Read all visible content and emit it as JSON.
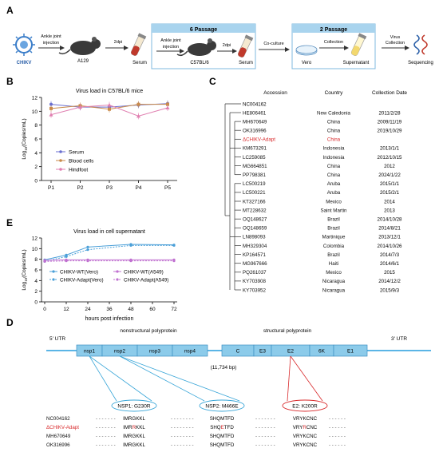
{
  "panels": {
    "A": "A",
    "B": "B",
    "C": "C",
    "D": "D",
    "E": "E"
  },
  "panel_a": {
    "virus": "CHIKV",
    "route": "Ankle joint injection",
    "host1": "A129",
    "dpi1": "2dpi",
    "serum1": "Serum",
    "passage6": "6 Passage",
    "route2": "Ankle joint injection",
    "host2": "C57BL/6",
    "dpi2": "2dpi",
    "serum2": "Serum",
    "coculture": "Co-culture",
    "passage2": "2 Passage",
    "cell": "Vero",
    "collection": "Collection",
    "supernatant": "Supernatant",
    "virus_collection": "Virus Collection",
    "sequencing": "Sequencing"
  },
  "chart_b": {
    "title": "Virus load in C57BL/6 mice",
    "ylabel": "Log10(Copies/mL)",
    "legend": [
      "Serum",
      "Blood cells",
      "Hindfoot"
    ]
  },
  "chart_e": {
    "title": "Virus load in cell supernatant",
    "ylabel": "Log10(Copies/mL)",
    "xlabel": "hours post infection",
    "legend": [
      "CHIKV-WT(Vero)",
      "CHIKV-Adapt(Vero)",
      "CHIKV-WT(A549)",
      "CHIKV-Adapt(A549)"
    ]
  },
  "chart_data": [
    {
      "type": "line",
      "title": "Virus load in C57BL/6 mice",
      "ylabel": "Log10(Copies/mL)",
      "xlabel": "",
      "categories": [
        "P1",
        "P2",
        "P3",
        "P4",
        "P5"
      ],
      "ylim": [
        0,
        12
      ],
      "yticks": [
        0,
        2,
        4,
        6,
        8,
        10,
        12
      ],
      "legend_position": "bottom-left",
      "series": [
        {
          "name": "Serum",
          "values": [
            11.0,
            10.6,
            10.6,
            10.9,
            11.1
          ],
          "color": "#6a6fd0"
        },
        {
          "name": "Blood cells",
          "values": [
            10.4,
            10.8,
            10.3,
            11.0,
            11.0
          ],
          "color": "#c98a4a"
        },
        {
          "name": "Hindfoot",
          "values": [
            9.5,
            10.6,
            10.9,
            9.3,
            10.5
          ],
          "color": "#e07fb0"
        }
      ]
    },
    {
      "type": "line",
      "title": "Virus load in cell supernatant",
      "ylabel": "Log10(Copies/mL)",
      "xlabel": "hours post infection",
      "x": [
        0,
        12,
        24,
        36,
        48,
        60,
        72
      ],
      "xticks": [
        0,
        12,
        24,
        36,
        48,
        60,
        72
      ],
      "ylim": [
        0,
        12
      ],
      "yticks": [
        0,
        2,
        4,
        6,
        8,
        10,
        12
      ],
      "legend_position": "bottom",
      "series": [
        {
          "name": "CHIKV-WT(Vero)",
          "x": [
            0,
            12,
            24,
            48,
            72
          ],
          "values": [
            7.9,
            8.8,
            10.3,
            10.8,
            10.7
          ],
          "color": "#4a9fd8",
          "dash": false
        },
        {
          "name": "CHIKV-Adapt(Vero)",
          "x": [
            0,
            12,
            24,
            48,
            72
          ],
          "values": [
            7.6,
            8.5,
            9.8,
            10.6,
            10.6
          ],
          "color": "#4a9fd8",
          "dash": true
        },
        {
          "name": "CHIKV-WT(A549)",
          "x": [
            0,
            12,
            24,
            48,
            72
          ],
          "values": [
            7.8,
            7.9,
            7.9,
            7.9,
            7.9
          ],
          "color": "#c070d0",
          "dash": false
        },
        {
          "name": "CHIKV-Adapt(A549)",
          "x": [
            0,
            12,
            24,
            48,
            72
          ],
          "values": [
            7.6,
            7.7,
            7.7,
            7.7,
            7.7
          ],
          "color": "#c070d0",
          "dash": true
        }
      ]
    }
  ],
  "panel_c": {
    "headers": [
      "Accession",
      "Country",
      "Collection Date"
    ],
    "root": "NC004162",
    "rows": [
      {
        "acc": "HE806461",
        "country": "New Caledonia",
        "date": "2011/2/28"
      },
      {
        "acc": "MH670649",
        "country": "China",
        "date": "2009/11/19"
      },
      {
        "acc": "OK316996",
        "country": "China",
        "date": "2019/10/29"
      },
      {
        "acc": "ΔCHIKV-Adapt",
        "country": "China",
        "date": "",
        "highlight": true
      },
      {
        "acc": "KM673291",
        "country": "Indonesia",
        "date": "2013/1/1"
      },
      {
        "acc": "LC259085",
        "country": "Indonesia",
        "date": "2012/10/15"
      },
      {
        "acc": "MG664851",
        "country": "China",
        "date": "2012"
      },
      {
        "acc": "PP798381",
        "country": "China",
        "date": "2024/1/22"
      },
      {
        "acc": "LC500219",
        "country": "Aruba",
        "date": "2015/1/1"
      },
      {
        "acc": "LC500221",
        "country": "Aruba",
        "date": "2015/2/1"
      },
      {
        "acc": "KT327166",
        "country": "Mexico",
        "date": "2014"
      },
      {
        "acc": "MT228632",
        "country": "Saint Martin",
        "date": "2013"
      },
      {
        "acc": "OQ148627",
        "country": "Brazil",
        "date": "2014/10/28"
      },
      {
        "acc": "OQ148659",
        "country": "Brazil",
        "date": "2014/8/21"
      },
      {
        "acc": "LN898093",
        "country": "Martinique",
        "date": "2013/12/1"
      },
      {
        "acc": "MH329304",
        "country": "Colombia",
        "date": "2014/10/26"
      },
      {
        "acc": "KP164571",
        "country": "Brazil",
        "date": "2014/7/3"
      },
      {
        "acc": "MG967666",
        "country": "Haiti",
        "date": "2014/6/1"
      },
      {
        "acc": "PQ261037",
        "country": "Mexico",
        "date": "2015"
      },
      {
        "acc": "KY703908",
        "country": "Nicaragua",
        "date": "2014/12/2"
      },
      {
        "acc": "KY703952",
        "country": "Nicaragua",
        "date": "2015/9/3"
      }
    ]
  },
  "panel_d": {
    "utr5": "5' UTR",
    "utr3": "3' UTR",
    "nonstructural": "nonstructural polyprotein",
    "structural": "structural polyprotein",
    "genes": [
      "nsp1",
      "nsp2",
      "nsp3",
      "nsp4",
      "C",
      "E3",
      "E2",
      "6K",
      "E1"
    ],
    "length": "(11,734 bp)",
    "mutations": [
      "NSP1: G230R",
      "NSP2: M466E",
      "E2: K200R"
    ],
    "seq_rows": [
      {
        "name": "NC004162",
        "s1": "IMRGKKL",
        "s2": "SHQMTFD",
        "s3": "VRYKCNC",
        "highlight": false
      },
      {
        "name": "ΔCHIKV-Adapt",
        "s1": "IMRRKKL",
        "s2": "SHQETFD",
        "s3": "VRYRCNC",
        "highlight": true
      },
      {
        "name": "MH670649",
        "s1": "IMRGKKL",
        "s2": "SHQMTFD",
        "s3": "VRYKCNC",
        "highlight": false
      },
      {
        "name": "OK316996",
        "s1": "IMRGKKL",
        "s2": "SHQMTFD",
        "s3": "VRYKCNC",
        "highlight": false
      }
    ]
  },
  "colors": {
    "accent_blue": "#8ccbea",
    "gene_blue": "#5bb5e6",
    "highlight_red": "#d8282a",
    "passage_box": "#a9d4ee"
  }
}
